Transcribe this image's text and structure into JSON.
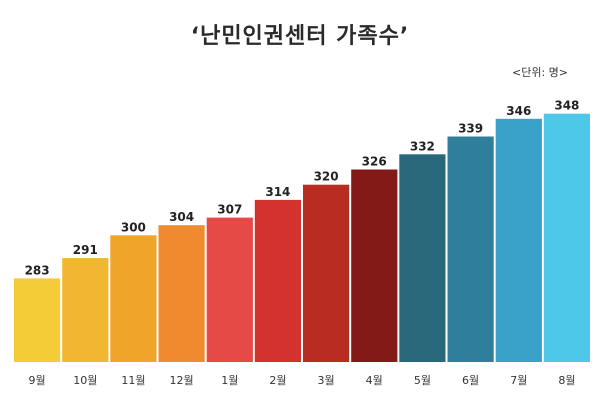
{
  "chart_data": {
    "type": "bar",
    "title": "‘난민인권센터 가족수’",
    "unit_note": "<단위: 명>",
    "categories": [
      "9월",
      "10월",
      "11월",
      "12월",
      "1월",
      "2월",
      "3월",
      "4월",
      "5월",
      "6월",
      "7월",
      "8월"
    ],
    "values": [
      283,
      291,
      300,
      304,
      307,
      314,
      320,
      326,
      332,
      339,
      346,
      348
    ],
    "colors": [
      "#f4cc38",
      "#f2b730",
      "#f0a42a",
      "#ef8a2e",
      "#e64a47",
      "#d3322f",
      "#b82c22",
      "#841a17",
      "#28687a",
      "#2f7f9c",
      "#3aa1c8",
      "#4ec8e8"
    ],
    "ylim": [
      250,
      355
    ],
    "grid": false,
    "legend": "none"
  }
}
